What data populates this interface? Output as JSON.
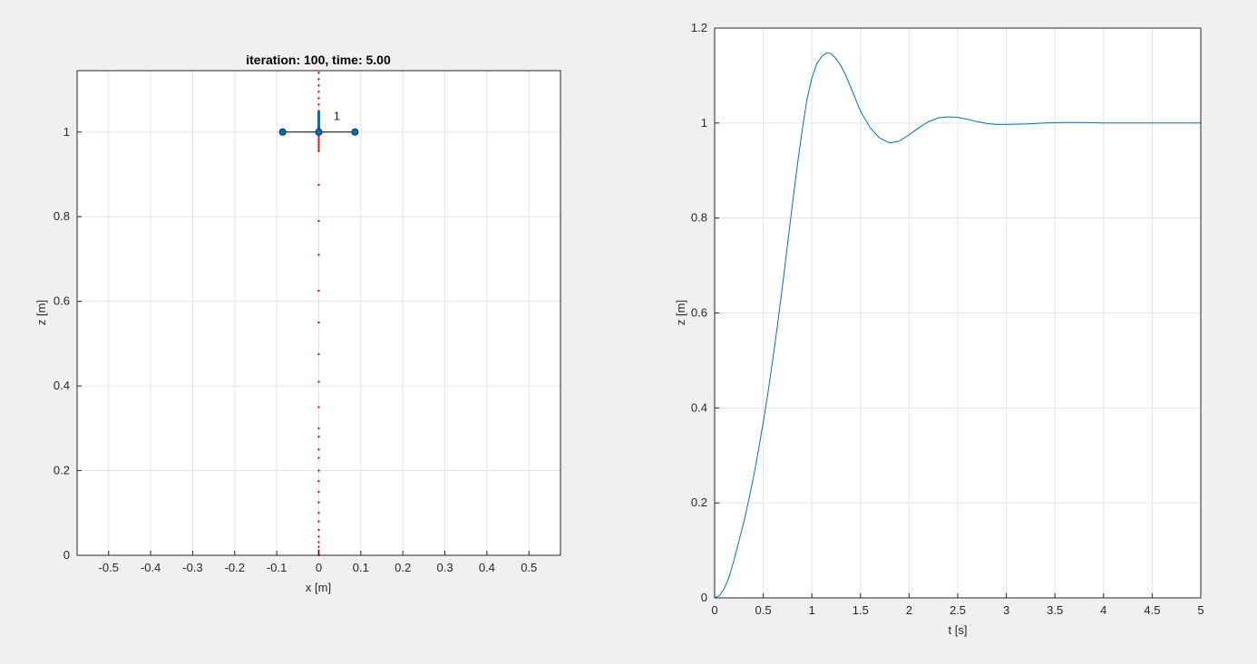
{
  "figure": {
    "background": "#f0f0f0",
    "axes_background": "#ffffff",
    "grid_color": "#e3e3e3",
    "axis_color": "#262626",
    "grid": true
  },
  "chart_data": [
    {
      "type": "scatter",
      "title": "iteration: 100, time: 5.00",
      "xlabel": "x [m]",
      "ylabel": "z [m]",
      "xlim": [
        -0.575,
        0.575
      ],
      "ylim": [
        0,
        1.145
      ],
      "xticks": [
        -0.5,
        -0.4,
        -0.3,
        -0.2,
        -0.1,
        0,
        0.1,
        0.2,
        0.3,
        0.4,
        0.5
      ],
      "xtick_labels": [
        "-0.5",
        "-0.4",
        "-0.3",
        "-0.2",
        "-0.1",
        "0",
        "0.1",
        "0.2",
        "0.3",
        "0.4",
        "0.5"
      ],
      "yticks": [
        0,
        0.2,
        0.4,
        0.6,
        0.8,
        1
      ],
      "ytick_labels": [
        "0",
        "0.2",
        "0.4",
        "0.6",
        "0.8",
        "1"
      ],
      "trail": {
        "color": "#cc0000",
        "x": 0,
        "z": [
          0,
          0.005,
          0.011,
          0.02,
          0.031,
          0.044,
          0.06,
          0.08,
          0.1,
          0.125,
          0.15,
          0.175,
          0.2,
          0.23,
          0.25,
          0.28,
          0.3,
          0.35,
          0.41,
          0.475,
          0.55,
          0.625,
          0.71,
          0.79,
          0.875,
          0.955,
          0.96,
          0.965,
          0.97,
          0.975,
          0.98,
          0.985,
          0.99,
          0.995,
          1.0,
          1.005,
          1.01,
          1.015,
          1.02,
          1.03,
          1.04,
          1.05,
          1.065,
          1.08,
          1.095,
          1.11,
          1.125,
          1.14
        ]
      },
      "body": {
        "arm_color": "#000000",
        "thrust_color": "#0072bd",
        "center": [
          0,
          1.0
        ],
        "arm_ends": [
          [
            -0.086,
            1.0
          ],
          [
            0.086,
            1.0
          ]
        ],
        "thrust_top": 1.05,
        "label": "1",
        "label_position": [
          0.035,
          1.028
        ]
      }
    },
    {
      "type": "line",
      "title": "",
      "xlabel": "t [s]",
      "ylabel": "z [m]",
      "xlim": [
        0,
        5
      ],
      "ylim": [
        0,
        1.2
      ],
      "xticks": [
        0,
        0.5,
        1,
        1.5,
        2,
        2.5,
        3,
        3.5,
        4,
        4.5,
        5
      ],
      "xtick_labels": [
        "0",
        "0.5",
        "1",
        "1.5",
        "2",
        "2.5",
        "3",
        "3.5",
        "4",
        "4.5",
        "5"
      ],
      "yticks": [
        0,
        0.2,
        0.4,
        0.6,
        0.8,
        1,
        1.2
      ],
      "ytick_labels": [
        "0",
        "0.2",
        "0.4",
        "0.6",
        "0.8",
        "1",
        "1.2"
      ],
      "series": [
        {
          "color": "#0072bd",
          "x": [
            0,
            0.05,
            0.1,
            0.15,
            0.2,
            0.25,
            0.3,
            0.35,
            0.4,
            0.45,
            0.5,
            0.55,
            0.6,
            0.65,
            0.7,
            0.75,
            0.8,
            0.85,
            0.9,
            0.95,
            1.0,
            1.05,
            1.1,
            1.15,
            1.2,
            1.25,
            1.3,
            1.35,
            1.4,
            1.45,
            1.5,
            1.6,
            1.7,
            1.8,
            1.9,
            2.0,
            2.1,
            2.2,
            2.3,
            2.4,
            2.5,
            2.6,
            2.7,
            2.8,
            2.9,
            3.0,
            3.2,
            3.4,
            3.6,
            3.8,
            4.0,
            4.2,
            4.4,
            4.6,
            4.8,
            5.0
          ],
          "y": [
            0,
            0.005,
            0.02,
            0.045,
            0.08,
            0.12,
            0.16,
            0.205,
            0.255,
            0.31,
            0.37,
            0.435,
            0.505,
            0.58,
            0.66,
            0.745,
            0.83,
            0.91,
            0.985,
            1.05,
            1.095,
            1.125,
            1.14,
            1.148,
            1.146,
            1.135,
            1.12,
            1.1,
            1.075,
            1.05,
            1.025,
            0.99,
            0.968,
            0.958,
            0.962,
            0.975,
            0.99,
            1.003,
            1.011,
            1.013,
            1.012,
            1.008,
            1.003,
            0.999,
            0.997,
            0.997,
            0.998,
            1.0,
            1.001,
            1.001,
            1.0,
            1.0,
            1.0,
            1.0,
            1.0,
            1.0
          ]
        }
      ]
    }
  ]
}
